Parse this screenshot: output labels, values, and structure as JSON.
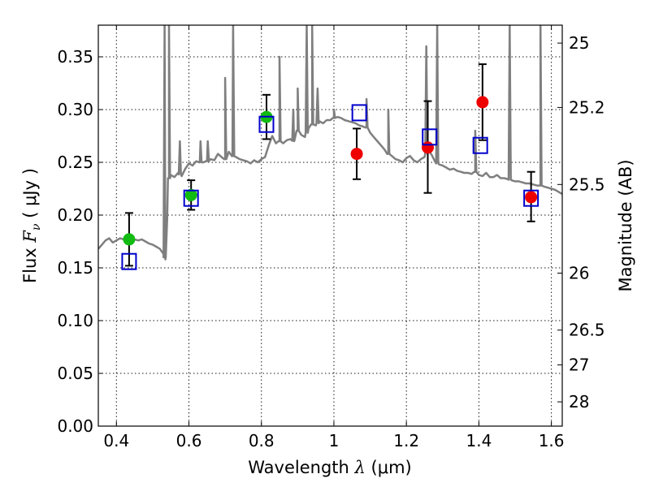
{
  "chart_data": {
    "type": "scatter",
    "xlabel_text": "Wavelength",
    "xlabel_symbol": "λ",
    "xlabel_unit": "(μm)",
    "ylabel_text": "Flux",
    "ylabel_symbol": "F",
    "ylabel_subscript": "ν",
    "ylabel_unit": "( μJy )",
    "y2label": "Magnitude (AB)",
    "xlim": [
      0.35,
      1.63
    ],
    "ylim": [
      0.0,
      0.38
    ],
    "xticks": [
      0.4,
      0.6,
      0.8,
      1.0,
      1.2,
      1.4,
      1.6
    ],
    "xtick_labels": [
      "0.4",
      "0.6",
      "0.8",
      "1",
      "1.2",
      "1.4",
      "1.6"
    ],
    "yticks": [
      0.0,
      0.05,
      0.1,
      0.15,
      0.2,
      0.25,
      0.3,
      0.35
    ],
    "ytick_labels": [
      "0.00",
      "0.05",
      "0.10",
      "0.15",
      "0.20",
      "0.25",
      "0.30",
      "0.35"
    ],
    "y2ticks": [
      {
        "label": "25",
        "flux": 0.363
      },
      {
        "label": "25.2",
        "flux": 0.302
      },
      {
        "label": "25.5",
        "flux": 0.229
      },
      {
        "label": "26",
        "flux": 0.145
      },
      {
        "label": "26.5",
        "flux": 0.091
      },
      {
        "label": "27",
        "flux": 0.058
      },
      {
        "label": "28",
        "flux": 0.023
      }
    ],
    "grid": true,
    "colors": {
      "spectrum": "#7f7f7f",
      "optical_points": "#11bb11",
      "nir_points": "#ee0000",
      "model_boxes": "#0000cc",
      "error_bars": "#000000"
    },
    "spectrum": {
      "x": [
        0.35,
        0.36,
        0.37,
        0.38,
        0.39,
        0.4,
        0.41,
        0.42,
        0.43,
        0.44,
        0.45,
        0.46,
        0.47,
        0.48,
        0.49,
        0.5,
        0.51,
        0.52,
        0.53,
        0.535,
        0.54,
        0.545,
        0.55,
        0.56,
        0.57,
        0.58,
        0.59,
        0.6,
        0.61,
        0.62,
        0.63,
        0.64,
        0.65,
        0.66,
        0.67,
        0.68,
        0.69,
        0.7,
        0.71,
        0.72,
        0.73,
        0.74,
        0.75,
        0.76,
        0.77,
        0.78,
        0.79,
        0.8,
        0.81,
        0.82,
        0.83,
        0.84,
        0.85,
        0.86,
        0.87,
        0.88,
        0.89,
        0.9,
        0.91,
        0.92,
        0.93,
        0.94,
        0.95,
        0.96,
        0.97,
        0.98,
        0.99,
        1.0,
        1.01,
        1.02,
        1.03,
        1.04,
        1.05,
        1.06,
        1.07,
        1.08,
        1.09,
        1.1,
        1.11,
        1.12,
        1.13,
        1.14,
        1.15,
        1.16,
        1.17,
        1.18,
        1.19,
        1.2,
        1.21,
        1.22,
        1.23,
        1.24,
        1.25,
        1.26,
        1.27,
        1.28,
        1.29,
        1.3,
        1.31,
        1.32,
        1.33,
        1.34,
        1.35,
        1.36,
        1.37,
        1.38,
        1.39,
        1.4,
        1.41,
        1.42,
        1.43,
        1.44,
        1.45,
        1.46,
        1.47,
        1.48,
        1.49,
        1.5,
        1.51,
        1.52,
        1.53,
        1.54,
        1.55,
        1.56,
        1.57,
        1.58,
        1.59,
        1.6,
        1.61,
        1.62,
        1.63
      ],
      "y": [
        0.168,
        0.172,
        0.176,
        0.178,
        0.174,
        0.176,
        0.178,
        0.177,
        0.175,
        0.176,
        0.177,
        0.176,
        0.177,
        0.175,
        0.173,
        0.172,
        0.17,
        0.168,
        0.163,
        0.158,
        0.197,
        0.235,
        0.238,
        0.236,
        0.24,
        0.237,
        0.244,
        0.249,
        0.247,
        0.251,
        0.25,
        0.25,
        0.251,
        0.253,
        0.252,
        0.258,
        0.255,
        0.253,
        0.26,
        0.256,
        0.255,
        0.253,
        0.252,
        0.251,
        0.249,
        0.252,
        0.25,
        0.253,
        0.255,
        0.266,
        0.275,
        0.268,
        0.27,
        0.268,
        0.271,
        0.272,
        0.27,
        0.28,
        0.276,
        0.274,
        0.282,
        0.286,
        0.285,
        0.289,
        0.287,
        0.29,
        0.29,
        0.292,
        0.293,
        0.292,
        0.29,
        0.289,
        0.288,
        0.287,
        0.285,
        0.284,
        0.283,
        0.278,
        0.274,
        0.27,
        0.266,
        0.262,
        0.258,
        0.256,
        0.253,
        0.252,
        0.25,
        0.254,
        0.256,
        0.252,
        0.25,
        0.253,
        0.255,
        0.262,
        0.257,
        0.25,
        0.248,
        0.247,
        0.245,
        0.243,
        0.244,
        0.242,
        0.241,
        0.24,
        0.24,
        0.239,
        0.241,
        0.238,
        0.237,
        0.24,
        0.236,
        0.236,
        0.238,
        0.235,
        0.235,
        0.234,
        0.233,
        0.232,
        0.232,
        0.231,
        0.23,
        0.23,
        0.229,
        0.228,
        0.228,
        0.227,
        0.226,
        0.225,
        0.224,
        0.222,
        0.22
      ]
    },
    "emission_lines": [
      {
        "x": 0.533,
        "peak": 0.38
      },
      {
        "x": 0.545,
        "peak": 0.38
      },
      {
        "x": 0.575,
        "peak": 0.27
      },
      {
        "x": 0.632,
        "peak": 0.27
      },
      {
        "x": 0.652,
        "peak": 0.27
      },
      {
        "x": 0.7,
        "peak": 0.33
      },
      {
        "x": 0.722,
        "peak": 0.38
      },
      {
        "x": 0.85,
        "peak": 0.35
      },
      {
        "x": 0.888,
        "peak": 0.3
      },
      {
        "x": 0.9,
        "peak": 0.32
      },
      {
        "x": 0.925,
        "peak": 0.38
      },
      {
        "x": 0.94,
        "peak": 0.38
      },
      {
        "x": 0.955,
        "peak": 0.32
      },
      {
        "x": 1.0,
        "peak": 0.3
      },
      {
        "x": 1.09,
        "peak": 0.31
      },
      {
        "x": 1.15,
        "peak": 0.3
      },
      {
        "x": 1.255,
        "peak": 0.36
      },
      {
        "x": 1.285,
        "peak": 0.38
      },
      {
        "x": 1.39,
        "peak": 0.28
      },
      {
        "x": 1.485,
        "peak": 0.38
      },
      {
        "x": 1.57,
        "peak": 0.38
      }
    ],
    "series": [
      {
        "marker": "circle",
        "color": "#11bb11",
        "points": [
          {
            "x": 0.435,
            "y": 0.177,
            "yerr_low": 0.152,
            "yerr_high": 0.202
          },
          {
            "x": 0.606,
            "y": 0.219,
            "yerr_low": 0.205,
            "yerr_high": 0.233
          },
          {
            "x": 0.814,
            "y": 0.293,
            "yerr_low": 0.272,
            "yerr_high": 0.314
          }
        ]
      },
      {
        "marker": "circle",
        "color": "#ee0000",
        "points": [
          {
            "x": 1.063,
            "y": 0.258,
            "yerr_low": 0.234,
            "yerr_high": 0.282
          },
          {
            "x": 1.259,
            "y": 0.264,
            "yerr_low": 0.221,
            "yerr_high": 0.308
          },
          {
            "x": 1.41,
            "y": 0.307,
            "yerr_low": 0.271,
            "yerr_high": 0.343
          },
          {
            "x": 1.544,
            "y": 0.217,
            "yerr_low": 0.194,
            "yerr_high": 0.241
          }
        ]
      },
      {
        "marker": "square",
        "color": "#0000cc",
        "points": [
          {
            "x": 0.435,
            "y": 0.156
          },
          {
            "x": 0.606,
            "y": 0.216
          },
          {
            "x": 0.814,
            "y": 0.286
          },
          {
            "x": 1.07,
            "y": 0.297
          },
          {
            "x": 1.264,
            "y": 0.274
          },
          {
            "x": 1.404,
            "y": 0.266
          },
          {
            "x": 1.544,
            "y": 0.216
          }
        ]
      }
    ]
  }
}
